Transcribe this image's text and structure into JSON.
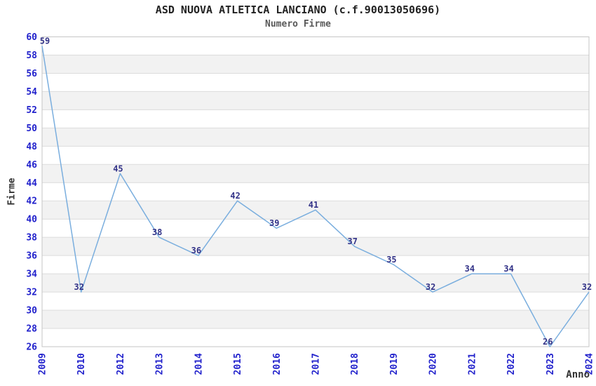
{
  "header": {
    "title": "ASD NUOVA ATLETICA LANCIANO (c.f.90013050696)",
    "subtitle": "Numero Firme"
  },
  "chart_data": {
    "type": "line",
    "title": "ASD NUOVA ATLETICA LANCIANO (c.f.90013050696)",
    "subtitle": "Numero Firme",
    "xlabel": "Anno",
    "ylabel": "Firme",
    "categories": [
      "2009",
      "2010",
      "2012",
      "2013",
      "2014",
      "2015",
      "2016",
      "2017",
      "2018",
      "2019",
      "2020",
      "2021",
      "2022",
      "2023",
      "2024"
    ],
    "values": [
      59,
      32,
      45,
      38,
      36,
      42,
      39,
      41,
      37,
      35,
      32,
      34,
      34,
      26,
      32
    ],
    "ylim": [
      26,
      60
    ],
    "ytick_step": 2,
    "grid": true,
    "banded_background": true,
    "legend": "none",
    "colors": {
      "line": "#7aaede",
      "tick_label": "#2222cc",
      "data_label": "#333388",
      "band": "#f2f2f2",
      "grid": "#dcdcdc",
      "border": "#c5c5c5",
      "title": "#222222",
      "subtitle": "#595959",
      "axis_label": "#333333"
    }
  }
}
